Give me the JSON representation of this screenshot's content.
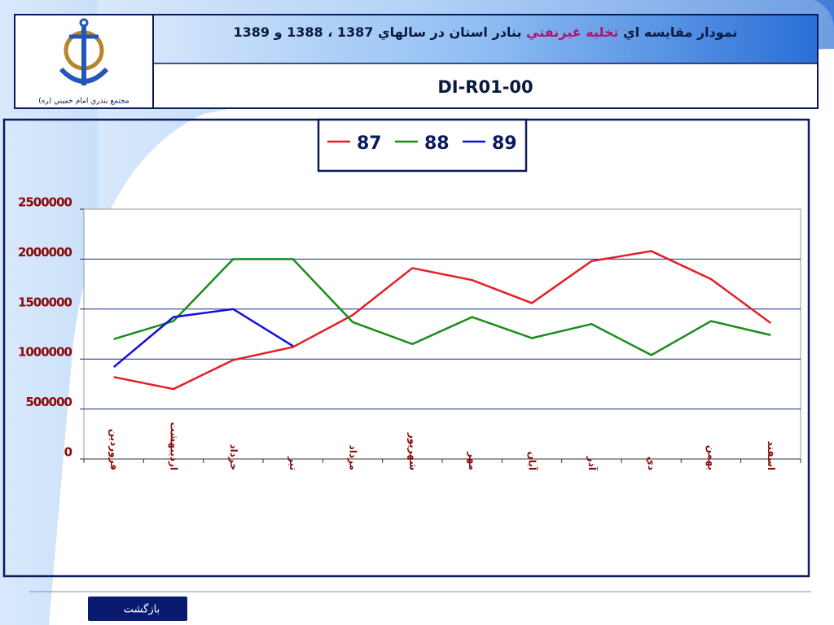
{
  "header": {
    "title_parts": [
      "نمودار مقايسه اي",
      "تخليه غيرنفتي",
      "بنادر استان در سالهاي 1387 ، 1388 و 1389"
    ],
    "code": "DI-R01-00",
    "logo_caption": "مجتمع بندري امام خميني (ره)"
  },
  "chart_data": {
    "type": "line",
    "categories": [
      "فروردين",
      "ارديبهشت",
      "خرداد",
      "تير",
      "مرداد",
      "شهريور",
      "مهر",
      "آبان",
      "آذر",
      "دي",
      "بهمن",
      "اسفند"
    ],
    "series": [
      {
        "name": "87",
        "color": "#e31e24",
        "values": [
          820000,
          700000,
          990000,
          1120000,
          1440000,
          1910000,
          1790000,
          1560000,
          1980000,
          2080000,
          1800000,
          1360000
        ]
      },
      {
        "name": "88",
        "color": "#1a8c1a",
        "values": [
          1200000,
          1380000,
          2000000,
          2000000,
          1370000,
          1150000,
          1420000,
          1210000,
          1350000,
          1040000,
          1380000,
          1240000
        ]
      },
      {
        "name": "89",
        "color": "#1010dd",
        "values": [
          920000,
          1420000,
          1500000,
          1130000,
          null,
          null,
          null,
          null,
          null,
          null,
          null,
          null
        ]
      }
    ],
    "ylim": [
      0,
      2500000
    ],
    "yticks": [
      0,
      500000,
      1000000,
      1500000,
      2000000,
      2500000
    ],
    "grid": true,
    "legend": "top"
  },
  "footer": {
    "button": "بازگشت"
  }
}
